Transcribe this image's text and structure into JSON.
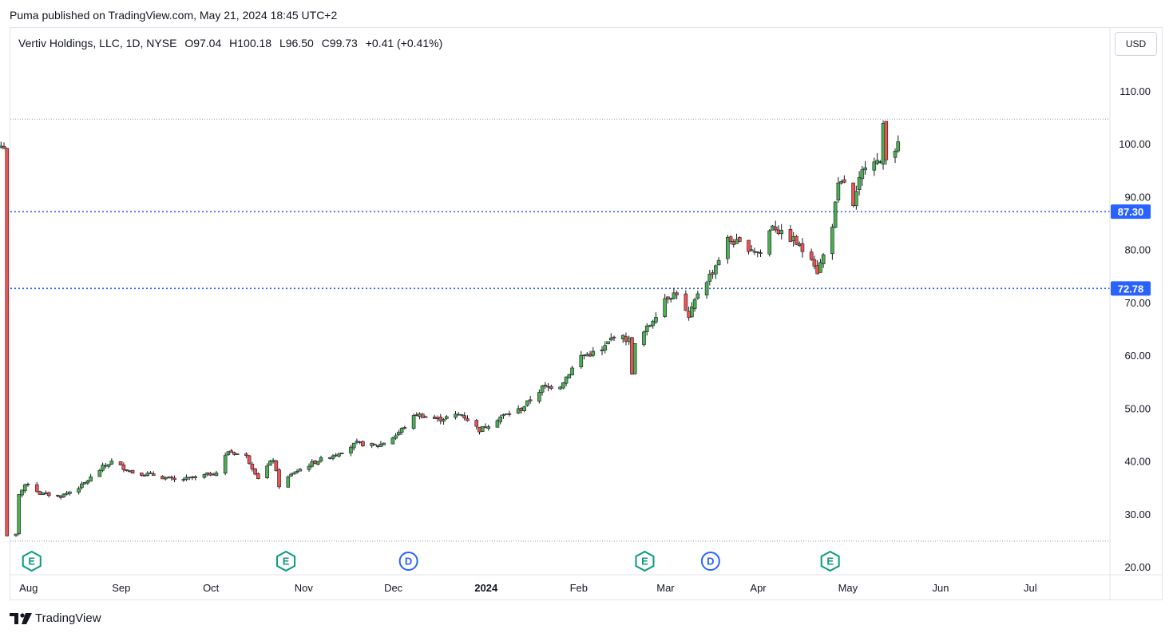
{
  "header": {
    "publisher_line": "Puma published on TradingView.com, May 21, 2024 18:45 UTC+2"
  },
  "legend": {
    "symbol": "Vertiv Holdings, LLC, 1D, NYSE",
    "open": "O97.04",
    "high": "H100.18",
    "low": "L96.50",
    "close": "C99.73",
    "change": "+0.41 (+0.41%)"
  },
  "currency_label": "USD",
  "footer": {
    "brand": "TradingView"
  },
  "colors": {
    "up": "#26a69a",
    "up_candle": "#4caf50",
    "down": "#ef5350",
    "level_line": "#2962ff",
    "grid": "#f0f3fa"
  },
  "chart_data": {
    "type": "candlestick",
    "ylim": [
      20,
      110
    ],
    "y_ticks": [
      "20.00",
      "30.00",
      "40.00",
      "50.00",
      "60.00",
      "70.00",
      "80.00",
      "90.00",
      "100.00",
      "110.00"
    ],
    "x_ticks": [
      {
        "label": "Aug",
        "bold": false
      },
      {
        "label": "Sep",
        "bold": false
      },
      {
        "label": "Oct",
        "bold": false
      },
      {
        "label": "Nov",
        "bold": false
      },
      {
        "label": "Dec",
        "bold": false
      },
      {
        "label": "2024",
        "bold": true
      },
      {
        "label": "Feb",
        "bold": false
      },
      {
        "label": "Mar",
        "bold": false
      },
      {
        "label": "Apr",
        "bold": false
      },
      {
        "label": "May",
        "bold": false
      },
      {
        "label": "Jun",
        "bold": false
      },
      {
        "label": "Jul",
        "bold": false
      }
    ],
    "horizontal_levels": [
      {
        "value": 87.3,
        "label": "87.30",
        "style": "dotted-blue"
      },
      {
        "value": 72.78,
        "label": "72.78",
        "style": "dotted-blue"
      },
      {
        "value": 104.8,
        "label": "",
        "style": "dotted-gray"
      },
      {
        "value": 25.0,
        "label": "",
        "style": "dotted-gray"
      }
    ],
    "events": [
      {
        "type": "E",
        "date": "Aug 1"
      },
      {
        "type": "E",
        "date": "Oct 25"
      },
      {
        "type": "D",
        "date": "Dec 5"
      },
      {
        "type": "E",
        "date": "Feb 22"
      },
      {
        "type": "D",
        "date": "Mar 15"
      },
      {
        "type": "E",
        "date": "Apr 24"
      }
    ],
    "keypoints": [
      [
        "Jul 28",
        25.8
      ],
      [
        "Jul 31",
        26.2
      ],
      [
        "Aug 1",
        34.0
      ],
      [
        "Aug 4",
        36.0
      ],
      [
        "Aug 8",
        34.0
      ],
      [
        "Aug 15",
        33.5
      ],
      [
        "Aug 22",
        35.5
      ],
      [
        "Aug 29",
        39.0
      ],
      [
        "Sep 1",
        40.0
      ],
      [
        "Sep 8",
        38.0
      ],
      [
        "Sep 15",
        37.5
      ],
      [
        "Sep 22",
        36.5
      ],
      [
        "Sep 29",
        37.0
      ],
      [
        "Oct 6",
        38.0
      ],
      [
        "Oct 10",
        42.0
      ],
      [
        "Oct 16",
        41.0
      ],
      [
        "Oct 20",
        37.0
      ],
      [
        "Oct 25",
        40.5
      ],
      [
        "Oct 27",
        35.5
      ],
      [
        "Nov 1",
        38.0
      ],
      [
        "Nov 8",
        40.0
      ],
      [
        "Nov 15",
        41.5
      ],
      [
        "Nov 22",
        43.5
      ],
      [
        "Nov 29",
        43.0
      ],
      [
        "Dec 5",
        45.0
      ],
      [
        "Dec 12",
        49.0
      ],
      [
        "Dec 19",
        48.0
      ],
      [
        "Dec 27",
        49.0
      ],
      [
        "Jan 2",
        46.0
      ],
      [
        "Jan 9",
        48.5
      ],
      [
        "Jan 16",
        50.0
      ],
      [
        "Jan 23",
        54.0
      ],
      [
        "Jan 29",
        54.5
      ],
      [
        "Feb 5",
        60.0
      ],
      [
        "Feb 12",
        61.0
      ],
      [
        "Feb 16",
        64.0
      ],
      [
        "Feb 21",
        63.0
      ],
      [
        "Feb 22",
        57.0
      ],
      [
        "Feb 23",
        62.0
      ],
      [
        "Feb 28",
        66.0
      ],
      [
        "Mar 4",
        71.0
      ],
      [
        "Mar 8",
        72.0
      ],
      [
        "Mar 12",
        67.0
      ],
      [
        "Mar 15",
        72.0
      ],
      [
        "Mar 20",
        76.0
      ],
      [
        "Mar 25",
        82.0
      ],
      [
        "Apr 1",
        80.5
      ],
      [
        "Apr 5",
        79.5
      ],
      [
        "Apr 9",
        85.0
      ],
      [
        "Apr 12",
        83.0
      ],
      [
        "Apr 16",
        82.0
      ],
      [
        "Apr 19",
        80.0
      ],
      [
        "Apr 22",
        79.0
      ],
      [
        "Apr 24",
        76.0
      ],
      [
        "Apr 26",
        79.0
      ],
      [
        "Apr 29",
        85.0
      ],
      [
        "May 1",
        92.0
      ],
      [
        "May 3",
        93.0
      ],
      [
        "May 6",
        88.0
      ],
      [
        "May 8",
        93.0
      ],
      [
        "May 10",
        96.5
      ],
      [
        "May 13",
        97.5
      ],
      [
        "May 15",
        96.0
      ],
      [
        "May 16",
        104.0
      ],
      [
        "May 17",
        98.0
      ],
      [
        "May 20",
        99.3
      ],
      [
        "May 21",
        99.73
      ]
    ]
  }
}
